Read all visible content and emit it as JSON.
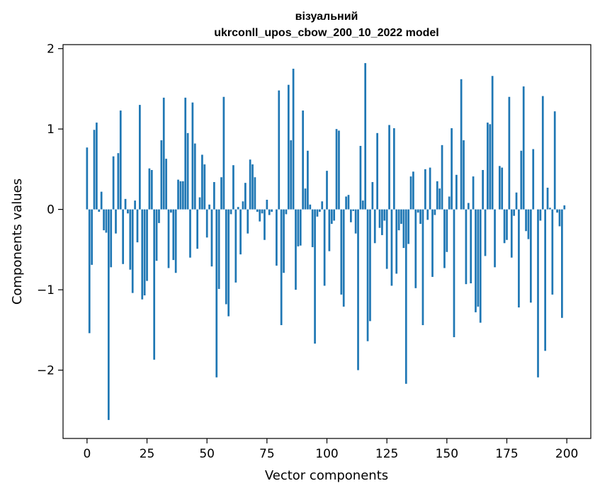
{
  "chart_data": {
    "type": "bar",
    "title_line1": "візуальний",
    "title_line2": "ukrconll_upos_cbow_200_10_2022 model",
    "xlabel": "Vector components",
    "ylabel": "Components values",
    "xlim": [
      -10,
      210
    ],
    "ylim": [
      -2.85,
      2.05
    ],
    "xticks": [
      0,
      25,
      50,
      75,
      100,
      125,
      150,
      175,
      200
    ],
    "xtick_labels": [
      "0",
      "25",
      "50",
      "75",
      "100",
      "125",
      "150",
      "175",
      "200"
    ],
    "yticks": [
      -2,
      -1,
      0,
      1,
      2
    ],
    "ytick_labels": [
      "−2",
      "−1",
      "0",
      "1",
      "2"
    ],
    "grid": false,
    "bar_color": "#1f77b4",
    "x": [
      0,
      1,
      2,
      3,
      4,
      5,
      6,
      7,
      8,
      9,
      10,
      11,
      12,
      13,
      14,
      15,
      16,
      17,
      18,
      19,
      20,
      21,
      22,
      23,
      24,
      25,
      26,
      27,
      28,
      29,
      30,
      31,
      32,
      33,
      34,
      35,
      36,
      37,
      38,
      39,
      40,
      41,
      42,
      43,
      44,
      45,
      46,
      47,
      48,
      49,
      50,
      51,
      52,
      53,
      54,
      55,
      56,
      57,
      58,
      59,
      60,
      61,
      62,
      63,
      64,
      65,
      66,
      67,
      68,
      69,
      70,
      71,
      72,
      73,
      74,
      75,
      76,
      77,
      78,
      79,
      80,
      81,
      82,
      83,
      84,
      85,
      86,
      87,
      88,
      89,
      90,
      91,
      92,
      93,
      94,
      95,
      96,
      97,
      98,
      99,
      100,
      101,
      102,
      103,
      104,
      105,
      106,
      107,
      108,
      109,
      110,
      111,
      112,
      113,
      114,
      115,
      116,
      117,
      118,
      119,
      120,
      121,
      122,
      123,
      124,
      125,
      126,
      127,
      128,
      129,
      130,
      131,
      132,
      133,
      134,
      135,
      136,
      137,
      138,
      139,
      140,
      141,
      142,
      143,
      144,
      145,
      146,
      147,
      148,
      149,
      150,
      151,
      152,
      153,
      154,
      155,
      156,
      157,
      158,
      159,
      160,
      161,
      162,
      163,
      164,
      165,
      166,
      167,
      168,
      169,
      170,
      171,
      172,
      173,
      174,
      175,
      176,
      177,
      178,
      179,
      180,
      181,
      182,
      183,
      184,
      185,
      186,
      187,
      188,
      189,
      190,
      191,
      192,
      193,
      194,
      195,
      196,
      197,
      198,
      199
    ],
    "values": [
      0.77,
      -1.54,
      -0.69,
      0.99,
      1.08,
      -0.03,
      0.22,
      -0.26,
      -0.29,
      -2.62,
      -0.72,
      0.66,
      -0.3,
      0.7,
      1.23,
      -0.68,
      0.13,
      -0.05,
      -0.75,
      -1.04,
      0.11,
      -0.41,
      1.3,
      -1.12,
      -1.07,
      -0.89,
      0.51,
      0.49,
      -1.87,
      -0.64,
      -0.17,
      0.86,
      1.39,
      0.63,
      -0.73,
      -0.04,
      -0.63,
      -0.79,
      0.37,
      0.35,
      0.35,
      1.39,
      0.95,
      -0.6,
      1.33,
      0.82,
      -0.49,
      0.15,
      0.68,
      0.56,
      -0.35,
      0.06,
      -0.71,
      0.34,
      -2.09,
      -0.99,
      0.4,
      1.4,
      -1.18,
      -1.33,
      -0.06,
      0.55,
      -0.91,
      0.03,
      -0.56,
      0.1,
      0.33,
      -0.3,
      0.62,
      0.56,
      0.4,
      -0.03,
      -0.15,
      -0.05,
      -0.38,
      0.12,
      -0.07,
      -0.03,
      0.0,
      -0.7,
      1.48,
      -1.44,
      -0.79,
      -0.06,
      1.55,
      0.86,
      1.75,
      -1.0,
      -0.46,
      -0.45,
      1.23,
      0.26,
      0.73,
      0.06,
      -0.47,
      -1.67,
      -0.09,
      -0.03,
      0.1,
      -0.95,
      0.48,
      -0.52,
      -0.18,
      -0.14,
      1.0,
      0.98,
      -1.06,
      -1.21,
      0.16,
      0.18,
      -0.16,
      -0.02,
      -0.3,
      -2.0,
      0.79,
      0.11,
      1.82,
      -1.64,
      -1.39,
      0.34,
      -0.42,
      0.95,
      -0.23,
      -0.32,
      -0.14,
      -0.74,
      1.05,
      -0.95,
      1.01,
      -0.8,
      -0.26,
      -0.18,
      -0.48,
      -2.17,
      -0.43,
      0.41,
      0.47,
      -0.98,
      -0.04,
      -0.18,
      -1.44,
      0.5,
      -0.13,
      0.52,
      -0.84,
      -0.07,
      0.35,
      0.26,
      0.8,
      -0.73,
      -0.53,
      0.16,
      1.01,
      -1.59,
      0.43,
      0.0,
      1.62,
      0.86,
      -0.93,
      0.08,
      -0.92,
      0.41,
      -1.28,
      -1.21,
      -1.41,
      0.49,
      -0.58,
      1.08,
      1.06,
      1.66,
      -0.72,
      0.0,
      0.54,
      0.52,
      -0.42,
      -0.38,
      1.4,
      -0.6,
      -0.08,
      0.21,
      -1.22,
      0.73,
      1.53,
      -0.27,
      -0.37,
      -1.16,
      0.75,
      0.0,
      -2.09,
      -0.14,
      1.41,
      -1.76,
      0.27,
      0.02,
      -1.06,
      1.22,
      -0.04,
      -0.21,
      -1.35,
      0.05
    ]
  }
}
